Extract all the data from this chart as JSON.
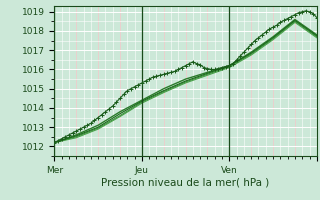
{
  "title": "",
  "xlabel": "Pression niveau de la mer( hPa )",
  "ylabel": "",
  "background_color": "#cce8d8",
  "plot_bg_color": "#cce8d8",
  "grid_color": "#aaccbb",
  "white_grid_color": "#ffffff",
  "text_color": "#1a4a1a",
  "ylim": [
    1011.5,
    1019.3
  ],
  "xlim": [
    0,
    72
  ],
  "yticks": [
    1012,
    1013,
    1014,
    1015,
    1016,
    1017,
    1018,
    1019
  ],
  "xtick_positions": [
    0,
    24,
    48,
    72
  ],
  "xtick_labels": [
    "Mer",
    "Jeu",
    "Ven",
    ""
  ],
  "day_vlines": [
    0,
    24,
    48
  ],
  "red_vlines_step": 6,
  "series": [
    {
      "x": [
        0,
        1,
        2,
        3,
        4,
        5,
        6,
        7,
        8,
        9,
        10,
        11,
        12,
        13,
        14,
        15,
        16,
        17,
        18,
        19,
        20,
        21,
        22,
        23,
        24,
        25,
        26,
        27,
        28,
        29,
        30,
        31,
        32,
        33,
        34,
        35,
        36,
        37,
        38,
        39,
        40,
        41,
        42,
        43,
        44,
        45,
        46,
        47,
        48,
        49,
        50,
        51,
        52,
        53,
        54,
        55,
        56,
        57,
        58,
        59,
        60,
        61,
        62,
        63,
        64,
        65,
        66,
        67,
        68,
        69,
        70,
        71,
        72
      ],
      "y": [
        1012.2,
        1012.3,
        1012.4,
        1012.5,
        1012.6,
        1012.7,
        1012.8,
        1012.9,
        1013.0,
        1013.1,
        1013.2,
        1013.35,
        1013.5,
        1013.65,
        1013.8,
        1013.95,
        1014.1,
        1014.3,
        1014.5,
        1014.7,
        1014.9,
        1015.0,
        1015.1,
        1015.2,
        1015.3,
        1015.4,
        1015.5,
        1015.6,
        1015.65,
        1015.7,
        1015.75,
        1015.8,
        1015.85,
        1015.9,
        1016.0,
        1016.1,
        1016.2,
        1016.3,
        1016.4,
        1016.3,
        1016.25,
        1016.1,
        1016.05,
        1016.0,
        1016.0,
        1016.05,
        1016.1,
        1016.15,
        1016.2,
        1016.3,
        1016.5,
        1016.7,
        1016.9,
        1017.1,
        1017.3,
        1017.5,
        1017.65,
        1017.8,
        1017.95,
        1018.1,
        1018.2,
        1018.3,
        1018.45,
        1018.55,
        1018.65,
        1018.75,
        1018.85,
        1018.95,
        1019.0,
        1019.05,
        1019.0,
        1018.9,
        1018.7
      ],
      "color": "#1a5c1a",
      "marker": "+",
      "markersize": 3.5,
      "linewidth": 0.8,
      "zorder": 5
    },
    {
      "x": [
        0,
        6,
        12,
        18,
        24,
        30,
        36,
        42,
        48,
        54,
        60,
        66,
        72
      ],
      "y": [
        1012.2,
        1012.6,
        1013.1,
        1013.8,
        1014.4,
        1015.0,
        1015.5,
        1015.85,
        1016.2,
        1016.9,
        1017.7,
        1018.6,
        1017.8
      ],
      "color": "#2a7a2a",
      "marker": null,
      "linewidth": 1.0,
      "zorder": 3
    },
    {
      "x": [
        0,
        6,
        12,
        18,
        24,
        30,
        36,
        42,
        48,
        54,
        60,
        66,
        72
      ],
      "y": [
        1012.2,
        1012.55,
        1013.0,
        1013.7,
        1014.35,
        1014.9,
        1015.4,
        1015.8,
        1016.2,
        1016.85,
        1017.65,
        1018.55,
        1017.75
      ],
      "color": "#1a6a1a",
      "marker": null,
      "linewidth": 0.8,
      "zorder": 3
    },
    {
      "x": [
        0,
        6,
        12,
        18,
        24,
        30,
        36,
        42,
        48,
        54,
        60,
        66,
        72
      ],
      "y": [
        1012.2,
        1012.5,
        1012.95,
        1013.6,
        1014.3,
        1014.85,
        1015.35,
        1015.75,
        1016.15,
        1016.8,
        1017.6,
        1018.5,
        1017.7
      ],
      "color": "#3a8a3a",
      "marker": null,
      "linewidth": 0.8,
      "zorder": 2
    },
    {
      "x": [
        0,
        6,
        12,
        18,
        24,
        30,
        36,
        42,
        48,
        54,
        60,
        66,
        72
      ],
      "y": [
        1012.2,
        1012.45,
        1012.9,
        1013.55,
        1014.25,
        1014.8,
        1015.3,
        1015.7,
        1016.1,
        1016.75,
        1017.55,
        1018.45,
        1017.65
      ],
      "color": "#48a048",
      "marker": null,
      "linewidth": 0.8,
      "zorder": 2
    }
  ]
}
